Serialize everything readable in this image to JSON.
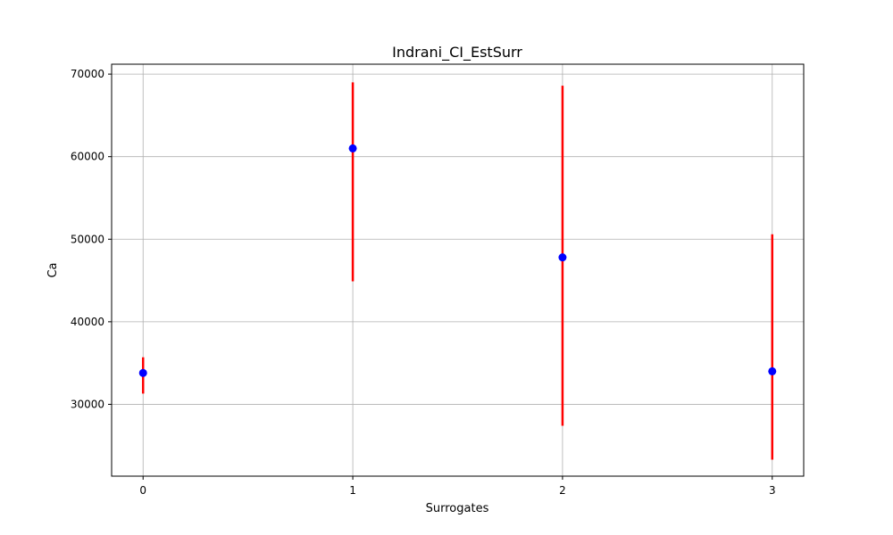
{
  "chart_data": {
    "type": "scatter",
    "title": "Indrani_CI_EstSurr",
    "xlabel": "Surrogates",
    "ylabel": "Ca",
    "xlim": [
      -0.15,
      3.15
    ],
    "ylim": [
      21300,
      71200
    ],
    "xticks": [
      0,
      1,
      2,
      3
    ],
    "yticks": [
      30000,
      40000,
      50000,
      60000,
      70000
    ],
    "grid": true,
    "colors": {
      "point": "#0000ff",
      "errorbar": "#ff0000"
    },
    "points": [
      {
        "x": 0,
        "y": 33800,
        "low": 31300,
        "high": 35700
      },
      {
        "x": 1,
        "y": 61000,
        "low": 44900,
        "high": 69000
      },
      {
        "x": 2,
        "y": 47800,
        "low": 27400,
        "high": 68600
      },
      {
        "x": 3,
        "y": 34000,
        "low": 23300,
        "high": 50600
      }
    ]
  }
}
